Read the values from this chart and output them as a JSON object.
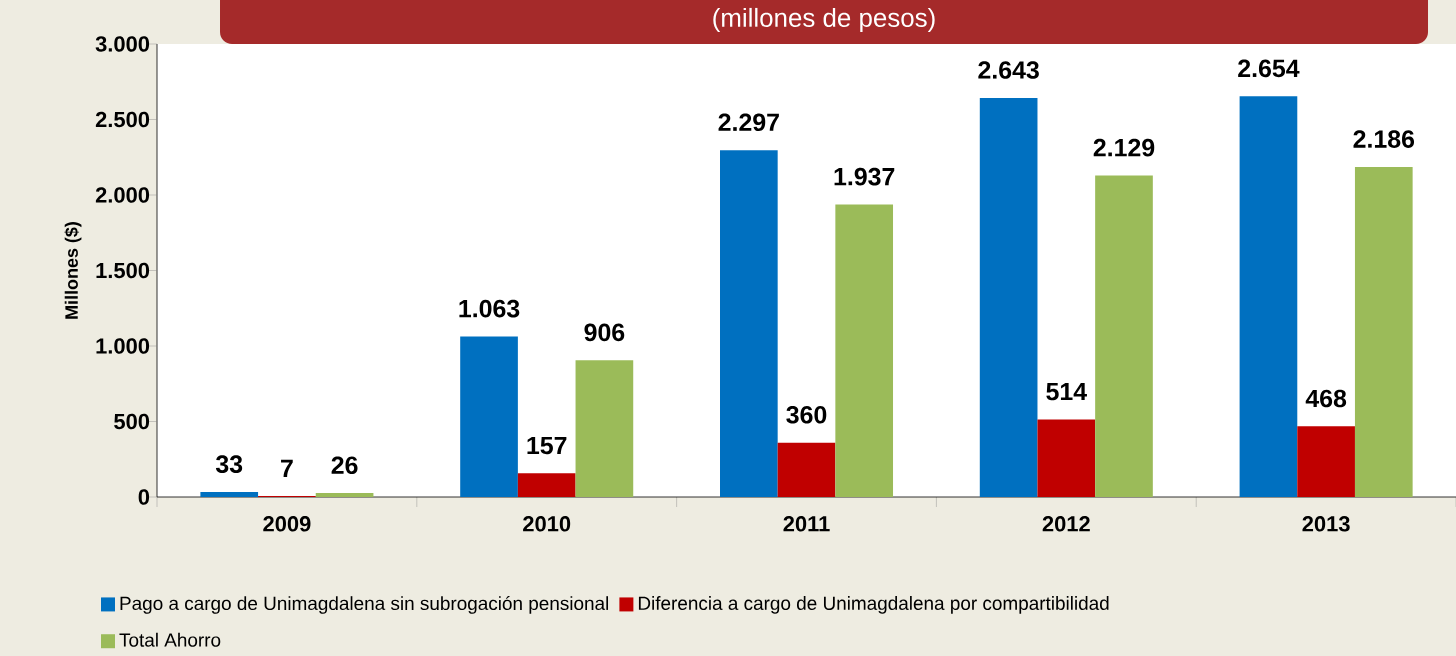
{
  "chart_data": {
    "type": "bar",
    "title": "(millones de pesos)",
    "ylabel": "Millones ($)",
    "categories": [
      "2009",
      "2010",
      "2011",
      "2012",
      "2013"
    ],
    "series": [
      {
        "name": "Pago a cargo de Unimagdalena sin subrogación pensional",
        "color": "#0070c0",
        "values": [
          33,
          1063,
          2297,
          2643,
          2654
        ],
        "value_labels": [
          "33",
          "1.063",
          "2.297",
          "2.643",
          "2.654"
        ]
      },
      {
        "name": "Diferencia a cargo de Unimagdalena por compartibilidad",
        "color": "#c00000",
        "values": [
          7,
          157,
          360,
          514,
          468
        ],
        "value_labels": [
          "7",
          "157",
          "360",
          "514",
          "468"
        ]
      },
      {
        "name": "Total Ahorro",
        "color": "#9bbb59",
        "values": [
          26,
          906,
          1937,
          2129,
          2186
        ],
        "value_labels": [
          "26",
          "906",
          "1.937",
          "2.129",
          "2.186"
        ]
      }
    ],
    "ylim": [
      0,
      3000
    ],
    "yticks": [
      0,
      500,
      {
        "value": 1000,
        "label": "1.000"
      },
      {
        "value": 1500,
        "label": "1.500"
      },
      {
        "value": 2000,
        "label": "2.000"
      },
      {
        "value": 2500,
        "label": "2.500"
      },
      {
        "value": 3000,
        "label": "3.000"
      }
    ],
    "legend": "bottom"
  }
}
